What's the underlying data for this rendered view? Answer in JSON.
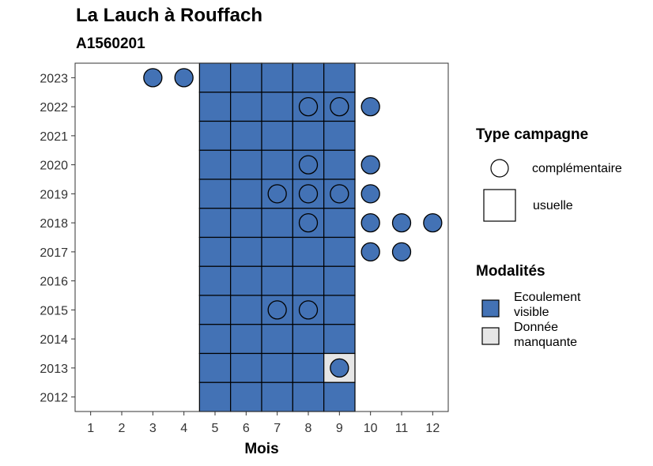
{
  "title": "La Lauch à Rouffach",
  "subtitle": "A1560201",
  "colors": {
    "ecoulement_visible": "#4372B5",
    "donnee_manquante": "#E6E6E6",
    "cell_border": "#000000",
    "panel_border": "#333333"
  },
  "legend": {
    "type_title": "Type campagne",
    "type_items": [
      {
        "label": "complémentaire",
        "shape": "circle"
      },
      {
        "label": "usuelle",
        "shape": "square"
      }
    ],
    "modalites_title": "Modalités",
    "modalites_items": [
      {
        "label": "Ecoulement visible",
        "color": "#4372B5"
      },
      {
        "label": "Donnée manquante",
        "color": "#E6E6E6"
      }
    ]
  },
  "chart_data": {
    "type": "heatmap",
    "title": "La Lauch à Rouffach",
    "subtitle": "A1560201",
    "xlabel": "Mois",
    "ylabel": "",
    "x_ticks": [
      1,
      2,
      3,
      4,
      5,
      6,
      7,
      8,
      9,
      10,
      11,
      12
    ],
    "y_ticks": [
      2012,
      2013,
      2014,
      2015,
      2016,
      2017,
      2018,
      2019,
      2020,
      2021,
      2022,
      2023
    ],
    "xlim": [
      0.5,
      12.5
    ],
    "ylim": [
      2011.5,
      2023.5
    ],
    "grid": false,
    "legend_position": "right",
    "usuelle_months": [
      5,
      6,
      7,
      8,
      9
    ],
    "cells": [
      {
        "year": 2023,
        "months": [
          5,
          6,
          7,
          8,
          9
        ],
        "modalite": "Ecoulement visible"
      },
      {
        "year": 2022,
        "months": [
          5,
          6,
          7,
          8,
          9
        ],
        "modalite": "Ecoulement visible"
      },
      {
        "year": 2021,
        "months": [
          5,
          6,
          7,
          8,
          9
        ],
        "modalite": "Ecoulement visible"
      },
      {
        "year": 2020,
        "months": [
          5,
          6,
          7,
          8,
          9
        ],
        "modalite": "Ecoulement visible"
      },
      {
        "year": 2019,
        "months": [
          5,
          6,
          7,
          8,
          9
        ],
        "modalite": "Ecoulement visible"
      },
      {
        "year": 2018,
        "months": [
          5,
          6,
          7,
          8,
          9
        ],
        "modalite": "Ecoulement visible"
      },
      {
        "year": 2017,
        "months": [
          5,
          6,
          7,
          8,
          9
        ],
        "modalite": "Ecoulement visible"
      },
      {
        "year": 2016,
        "months": [
          5,
          6,
          7,
          8,
          9
        ],
        "modalite": "Ecoulement visible"
      },
      {
        "year": 2015,
        "months": [
          5,
          6,
          7,
          8,
          9
        ],
        "modalite": "Ecoulement visible"
      },
      {
        "year": 2014,
        "months": [
          5,
          6,
          7,
          8,
          9
        ],
        "modalite": "Ecoulement visible"
      },
      {
        "year": 2013,
        "months": [
          5,
          6,
          7,
          8
        ],
        "modalite": "Ecoulement visible"
      },
      {
        "year": 2013,
        "months": [
          9
        ],
        "modalite": "Donnée manquante"
      },
      {
        "year": 2012,
        "months": [
          5,
          6,
          7,
          8,
          9
        ],
        "modalite": "Ecoulement visible"
      }
    ],
    "complementaire": [
      {
        "year": 2023,
        "month": 3,
        "modalite": "Ecoulement visible"
      },
      {
        "year": 2023,
        "month": 4,
        "modalite": "Ecoulement visible"
      },
      {
        "year": 2022,
        "month": 8,
        "modalite": "Ecoulement visible"
      },
      {
        "year": 2022,
        "month": 9,
        "modalite": "Ecoulement visible"
      },
      {
        "year": 2022,
        "month": 10,
        "modalite": "Ecoulement visible"
      },
      {
        "year": 2020,
        "month": 8,
        "modalite": "Ecoulement visible"
      },
      {
        "year": 2020,
        "month": 10,
        "modalite": "Ecoulement visible"
      },
      {
        "year": 2019,
        "month": 7,
        "modalite": "Ecoulement visible"
      },
      {
        "year": 2019,
        "month": 8,
        "modalite": "Ecoulement visible"
      },
      {
        "year": 2019,
        "month": 9,
        "modalite": "Ecoulement visible"
      },
      {
        "year": 2019,
        "month": 10,
        "modalite": "Ecoulement visible"
      },
      {
        "year": 2018,
        "month": 8,
        "modalite": "Ecoulement visible"
      },
      {
        "year": 2018,
        "month": 10,
        "modalite": "Ecoulement visible"
      },
      {
        "year": 2018,
        "month": 11,
        "modalite": "Ecoulement visible"
      },
      {
        "year": 2018,
        "month": 12,
        "modalite": "Ecoulement visible"
      },
      {
        "year": 2017,
        "month": 10,
        "modalite": "Ecoulement visible"
      },
      {
        "year": 2017,
        "month": 11,
        "modalite": "Ecoulement visible"
      },
      {
        "year": 2015,
        "month": 7,
        "modalite": "Ecoulement visible"
      },
      {
        "year": 2015,
        "month": 8,
        "modalite": "Ecoulement visible"
      },
      {
        "year": 2013,
        "month": 9,
        "modalite": "Ecoulement visible"
      }
    ]
  }
}
